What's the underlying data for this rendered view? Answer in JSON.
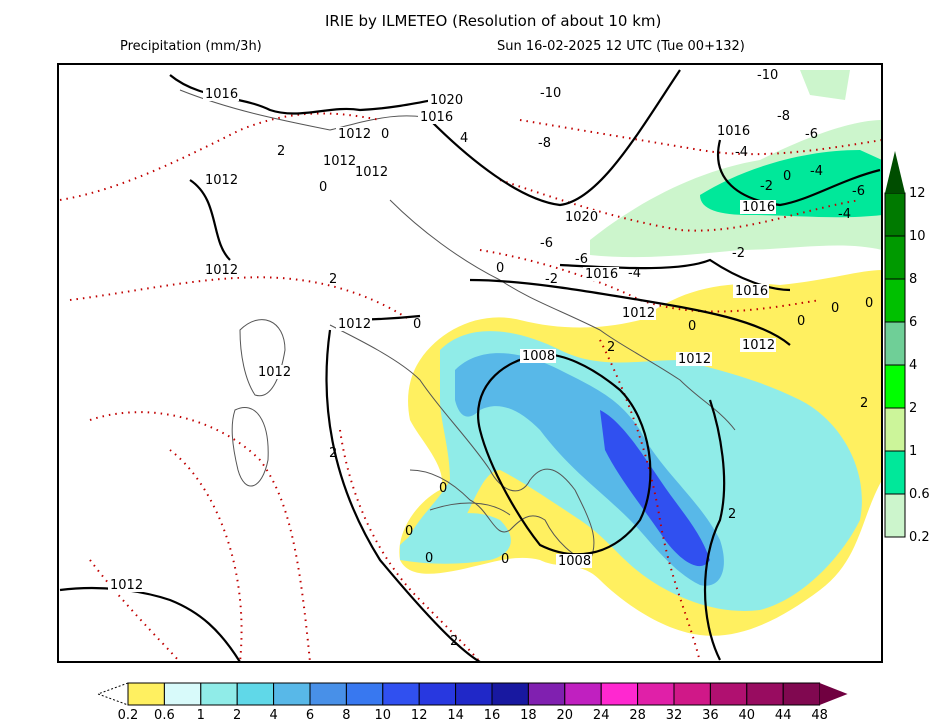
{
  "header": {
    "title": "IRIE by ILMETEO (Resolution of about 10 km)",
    "variable": "Precipitation (mm/3h)",
    "valid_time": "Sun 16-02-2025 12 UTC (Tue 00+132)"
  },
  "map": {
    "pressure_labels": [
      "1016",
      "1020",
      "1016",
      "1012",
      "1012",
      "1012",
      "1012",
      "1012",
      "1012",
      "1012",
      "1008",
      "1008",
      "1020",
      "1016",
      "1016",
      "1016",
      "1016",
      "1012",
      "1012",
      "1012",
      "1012"
    ],
    "temperature_labels": [
      "-10",
      "-10",
      "-8",
      "-8",
      "-6",
      "-4",
      "-4",
      "-6",
      "-4",
      "-6",
      "-6",
      "-4",
      "-2",
      "-2",
      "2",
      "0",
      "4",
      "0",
      "2",
      "0",
      "0",
      "2",
      "0",
      "0",
      "0",
      "0",
      "2",
      "0",
      "0",
      "0",
      "0",
      "2",
      "2",
      "2",
      "-2",
      "0"
    ]
  },
  "rain_colorbar": {
    "labels": [
      "0.2",
      "0.6",
      "1",
      "2",
      "4",
      "6",
      "8",
      "10",
      "12",
      "14",
      "16",
      "18",
      "20",
      "24",
      "28",
      "32",
      "36",
      "40",
      "44",
      "48"
    ],
    "colors": [
      "#fff060",
      "#d8fafa",
      "#90ece8",
      "#60d8e8",
      "#58b8e8",
      "#4890e8",
      "#3878f0",
      "#3050f0",
      "#2838e0",
      "#2028c8",
      "#1818a0",
      "#8020b0",
      "#c020c0",
      "#ff28d0",
      "#e020a8",
      "#d01888",
      "#b01070",
      "#980c60",
      "#800850"
    ],
    "over_color": "#700040"
  },
  "snow_colorbar": {
    "labels": [
      "0.2",
      "0.6",
      "1",
      "2",
      "4",
      "6",
      "8",
      "10",
      "12"
    ],
    "colors": [
      "#ccf5cc",
      "#00e89a",
      "#ccf59a",
      "#00ff00",
      "#6fcf97",
      "#00c000",
      "#009a00",
      "#007a00"
    ],
    "over_color": "#004d00"
  }
}
